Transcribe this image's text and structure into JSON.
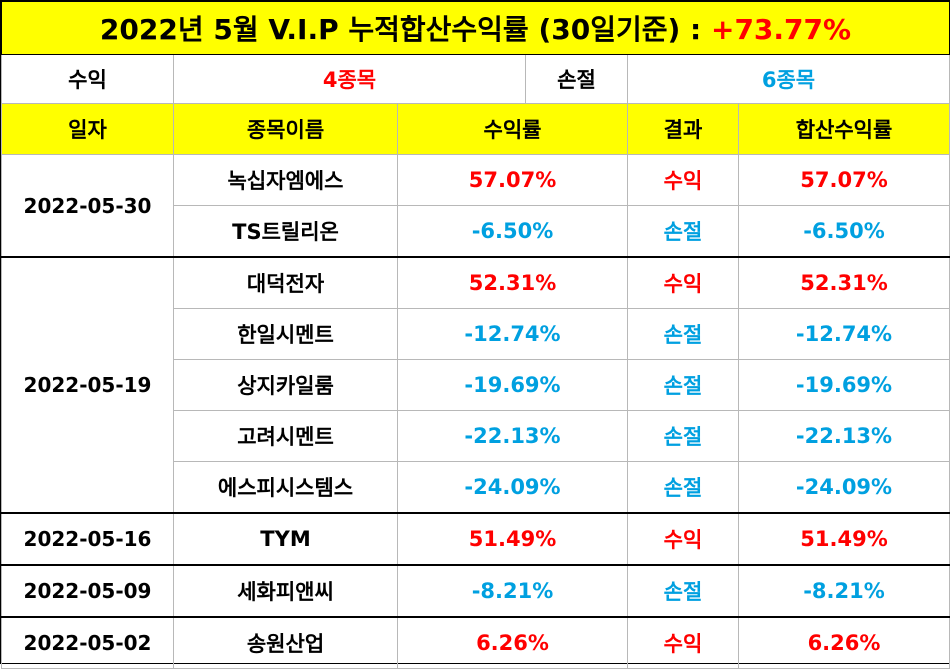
{
  "title": {
    "text": "2022년 5월 V.I.P 누적합산수익률 (30일기준) : ",
    "value": "+73.77%"
  },
  "summary": {
    "gain_label": "수익",
    "gain_value": "4종목",
    "loss_label": "손절",
    "loss_value": "6종목"
  },
  "headers": [
    "일자",
    "종목이름",
    "수익률",
    "결과",
    "합산수익률"
  ],
  "groups": [
    {
      "date": "2022-05-30",
      "rows": [
        {
          "name": "녹십자엠에스",
          "rate": "57.07%",
          "result": "수익",
          "total": "57.07%",
          "type": "gain"
        },
        {
          "name": "TS트릴리온",
          "rate": "-6.50%",
          "result": "손절",
          "total": "-6.50%",
          "type": "loss"
        }
      ]
    },
    {
      "date": "2022-05-19",
      "rows": [
        {
          "name": "대덕전자",
          "rate": "52.31%",
          "result": "수익",
          "total": "52.31%",
          "type": "gain"
        },
        {
          "name": "한일시멘트",
          "rate": "-12.74%",
          "result": "손절",
          "total": "-12.74%",
          "type": "loss"
        },
        {
          "name": "상지카일룸",
          "rate": "-19.69%",
          "result": "손절",
          "total": "-19.69%",
          "type": "loss"
        },
        {
          "name": "고려시멘트",
          "rate": "-22.13%",
          "result": "손절",
          "total": "-22.13%",
          "type": "loss"
        },
        {
          "name": "에스피시스템스",
          "rate": "-24.09%",
          "result": "손절",
          "total": "-24.09%",
          "type": "loss"
        }
      ]
    },
    {
      "date": "2022-05-16",
      "rows": [
        {
          "name": "TYM",
          "rate": "51.49%",
          "result": "수익",
          "total": "51.49%",
          "type": "gain"
        }
      ]
    },
    {
      "date": "2022-05-09",
      "rows": [
        {
          "name": "세화피앤씨",
          "rate": "-8.21%",
          "result": "손절",
          "total": "-8.21%",
          "type": "loss"
        }
      ]
    },
    {
      "date": "2022-05-02",
      "rows": [
        {
          "name": "송원산업",
          "rate": "6.26%",
          "result": "수익",
          "total": "6.26%",
          "type": "gain"
        }
      ]
    }
  ],
  "colors": {
    "header_bg": "#ffff00",
    "gain": "#ff0000",
    "loss": "#00a0e0"
  }
}
